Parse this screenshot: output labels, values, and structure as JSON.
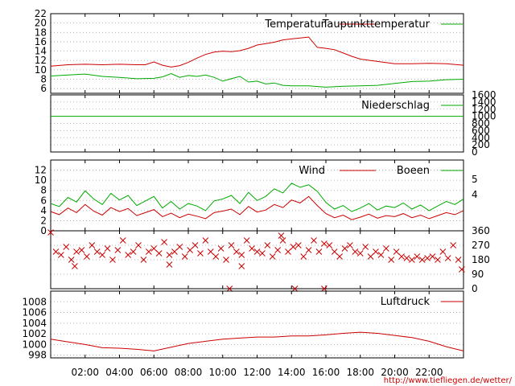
{
  "page": {
    "source_url": "http://www.tiefliegen.de/wetter/"
  },
  "chart_data": [
    {
      "type": "line",
      "panel": "temperature",
      "x_unit": "hour",
      "xlim": [
        0,
        24
      ],
      "ylim": [
        5,
        22
      ],
      "yticks": [
        "6",
        "8",
        "10",
        "12",
        "14",
        "16",
        "18",
        "20",
        "22"
      ],
      "legend_position": "top-right",
      "series": [
        {
          "name": "Temperatur",
          "color": "#cc0000",
          "x": [
            0,
            1,
            2,
            3,
            4,
            5,
            5.5,
            6,
            6.5,
            7,
            7.5,
            8,
            8.5,
            9,
            9.5,
            10,
            10.5,
            11,
            11.5,
            12,
            12.5,
            13,
            13.5,
            14,
            14.5,
            15,
            15.5,
            16,
            16.5,
            17,
            17.5,
            18,
            19,
            20,
            21,
            22,
            23,
            24
          ],
          "y": [
            10.8,
            11.1,
            11.2,
            11.1,
            11.2,
            11.1,
            11.1,
            11.7,
            11.0,
            10.6,
            10.9,
            11.6,
            12.5,
            13.3,
            13.8,
            14.0,
            13.9,
            14.1,
            14.6,
            15.3,
            15.6,
            15.9,
            16.4,
            16.6,
            16.8,
            17.0,
            14.8,
            14.6,
            14.3,
            13.6,
            12.9,
            12.3,
            11.8,
            11.3,
            11.3,
            11.4,
            11.3,
            11.0
          ]
        },
        {
          "name": "Taupunkttemperatur",
          "color": "#00aa00",
          "x": [
            0,
            1,
            2,
            3,
            4,
            5,
            6,
            6.5,
            7,
            7.5,
            8,
            8.5,
            9,
            9.5,
            10,
            10.5,
            11,
            11.5,
            12,
            12.5,
            13,
            13.5,
            14,
            15,
            16,
            17,
            18,
            19,
            20,
            21,
            22,
            23,
            24
          ],
          "y": [
            8.7,
            8.9,
            9.1,
            8.6,
            8.4,
            8.1,
            8.2,
            8.5,
            9.2,
            8.4,
            8.8,
            8.6,
            8.9,
            8.4,
            7.6,
            8.1,
            8.6,
            7.4,
            7.6,
            7.0,
            7.2,
            6.7,
            6.6,
            6.6,
            6.3,
            6.5,
            6.6,
            6.7,
            7.1,
            7.5,
            7.6,
            7.9,
            8.0
          ]
        }
      ]
    },
    {
      "type": "line",
      "panel": "precipitation",
      "xlim": [
        0,
        24
      ],
      "ylim": [
        0,
        1600
      ],
      "y2ticks": [
        "0",
        "200",
        "400",
        "600",
        "800",
        "1000",
        "1200",
        "1400",
        "1600"
      ],
      "legend_position": "top-right",
      "series": [
        {
          "name": "Niederschlag",
          "color": "#00aa00",
          "x": [
            0,
            24
          ],
          "y": [
            1000,
            1000
          ]
        }
      ]
    },
    {
      "type": "line",
      "panel": "wind",
      "xlim": [
        0,
        24
      ],
      "ylim": [
        0,
        14
      ],
      "yticks": [
        "0",
        "2",
        "4",
        "6",
        "8",
        "10",
        "12"
      ],
      "y2ticks": [
        "4",
        "5"
      ],
      "legend_position": "top-right",
      "series": [
        {
          "name": "Wind",
          "color": "#cc0000",
          "x": [
            0,
            0.5,
            1,
            1.5,
            2,
            2.5,
            3,
            3.5,
            4,
            4.5,
            5,
            5.5,
            6,
            6.5,
            7,
            7.5,
            8,
            8.5,
            9,
            9.5,
            10,
            10.5,
            11,
            11.5,
            12,
            12.5,
            13,
            13.5,
            14,
            14.5,
            15,
            15.5,
            16,
            16.5,
            17,
            17.5,
            18,
            18.5,
            19,
            19.5,
            20,
            20.5,
            21,
            21.5,
            22,
            22.5,
            23,
            23.5,
            24
          ],
          "y": [
            3.8,
            3.2,
            4.5,
            3.6,
            5.2,
            3.9,
            3.1,
            4.6,
            3.8,
            4.4,
            3.0,
            3.6,
            4.2,
            2.8,
            3.5,
            2.6,
            3.3,
            2.9,
            2.4,
            3.6,
            3.9,
            4.3,
            3.2,
            4.8,
            3.7,
            4.1,
            5.2,
            4.6,
            6.1,
            5.5,
            6.8,
            5.0,
            3.4,
            2.6,
            3.1,
            2.2,
            2.7,
            3.3,
            2.5,
            3.0,
            2.8,
            3.4,
            2.6,
            3.1,
            2.4,
            3.0,
            3.6,
            3.2,
            4.0
          ]
        },
        {
          "name": "Boeen",
          "color": "#00aa00",
          "x": [
            0,
            0.5,
            1,
            1.5,
            2,
            2.5,
            3,
            3.5,
            4,
            4.5,
            5,
            5.5,
            6,
            6.5,
            7,
            7.5,
            8,
            8.5,
            9,
            9.5,
            10,
            10.5,
            11,
            11.5,
            12,
            12.5,
            13,
            13.5,
            14,
            14.5,
            15,
            15.5,
            16,
            16.5,
            17,
            17.5,
            18,
            18.5,
            19,
            19.5,
            20,
            20.5,
            21,
            21.5,
            22,
            22.5,
            23,
            23.5,
            24
          ],
          "y": [
            5.4,
            4.8,
            6.6,
            5.7,
            7.9,
            6.3,
            5.2,
            7.4,
            6.1,
            7.0,
            5.0,
            5.9,
            6.8,
            4.5,
            5.8,
            4.3,
            5.4,
            4.9,
            4.0,
            5.9,
            6.3,
            7.0,
            5.4,
            7.6,
            6.0,
            6.8,
            8.3,
            7.5,
            9.4,
            8.6,
            9.1,
            7.8,
            5.6,
            4.3,
            5.0,
            3.8,
            4.5,
            5.4,
            4.1,
            4.9,
            4.6,
            5.5,
            4.3,
            5.1,
            4.0,
            4.9,
            5.8,
            5.2,
            6.3
          ]
        }
      ]
    },
    {
      "type": "scatter",
      "panel": "wind-direction",
      "xlim": [
        0,
        24
      ],
      "ylim": [
        0,
        360
      ],
      "y2ticks": [
        "0",
        "90",
        "180",
        "270",
        "360"
      ],
      "series": [
        {
          "color": "#cc0000",
          "marker": "x",
          "x": [
            0,
            0.3,
            0.6,
            0.9,
            1.2,
            1.5,
            1.8,
            2.1,
            2.4,
            2.7,
            3.0,
            3.3,
            3.6,
            3.9,
            4.2,
            4.5,
            4.8,
            5.1,
            5.4,
            5.7,
            6.0,
            6.3,
            6.6,
            6.9,
            7.2,
            7.5,
            7.8,
            8.1,
            8.4,
            8.7,
            9.0,
            9.3,
            9.6,
            9.9,
            10.2,
            10.5,
            10.8,
            11.1,
            11.4,
            11.7,
            12.0,
            12.3,
            12.6,
            12.9,
            13.2,
            13.5,
            13.8,
            14.1,
            14.4,
            14.7,
            15.0,
            15.3,
            15.6,
            15.9,
            16.2,
            16.5,
            16.8,
            17.1,
            17.4,
            17.7,
            18.0,
            18.3,
            18.6,
            18.9,
            19.2,
            19.5,
            19.8,
            20.1,
            20.4,
            20.7,
            21.0,
            21.3,
            21.6,
            21.9,
            22.2,
            22.5,
            22.8,
            23.1,
            23.4,
            23.7,
            10.4,
            14.2,
            15.9,
            1.4,
            6.9,
            23.9,
            13.4,
            11.1
          ],
          "y": [
            350,
            230,
            210,
            260,
            180,
            230,
            240,
            200,
            270,
            230,
            210,
            250,
            180,
            240,
            300,
            210,
            230,
            270,
            180,
            230,
            250,
            220,
            290,
            210,
            230,
            260,
            200,
            240,
            270,
            220,
            300,
            230,
            200,
            250,
            180,
            270,
            230,
            210,
            300,
            250,
            230,
            220,
            270,
            200,
            240,
            300,
            230,
            260,
            270,
            200,
            240,
            300,
            230,
            280,
            270,
            230,
            200,
            250,
            270,
            230,
            220,
            260,
            200,
            230,
            210,
            250,
            180,
            230,
            200,
            190,
            180,
            200,
            180,
            190,
            200,
            180,
            230,
            190,
            270,
            180,
            0,
            0,
            0,
            140,
            150,
            120,
            330,
            140
          ]
        }
      ]
    },
    {
      "type": "line",
      "panel": "pressure",
      "xlim": [
        0,
        24
      ],
      "ylim": [
        997.5,
        1010
      ],
      "yticks": [
        "998",
        "1000",
        "1002",
        "1004",
        "1006",
        "1008"
      ],
      "xticks": [
        "02:00",
        "04:00",
        "06:00",
        "08:00",
        "10:00",
        "12:00",
        "14:00",
        "16:00",
        "18:00",
        "20:00",
        "22:00"
      ],
      "legend_position": "top-right",
      "series": [
        {
          "name": "Luftdruck",
          "color": "#cc0000",
          "x": [
            0,
            1,
            2,
            3,
            4,
            5,
            6,
            7,
            8,
            9,
            10,
            11,
            12,
            13,
            14,
            15,
            16,
            17,
            18,
            19,
            20,
            21,
            22,
            23,
            24
          ],
          "y": [
            1001.0,
            1000.5,
            1000.0,
            999.4,
            999.3,
            999.1,
            998.8,
            999.5,
            1000.2,
            1000.6,
            1001.0,
            1001.2,
            1001.4,
            1001.4,
            1001.6,
            1001.6,
            1001.8,
            1002.1,
            1002.3,
            1002.1,
            1001.7,
            1001.3,
            1000.6,
            999.6,
            998.8
          ]
        }
      ]
    }
  ]
}
